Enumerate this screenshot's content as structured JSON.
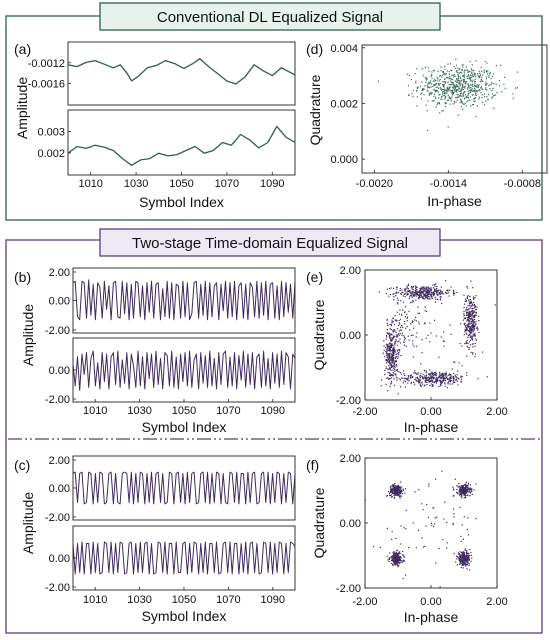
{
  "sections": [
    {
      "title": "Conventional DL Equalized Signal",
      "theme": "#2e5e4e",
      "fill": "#e6f3ec",
      "trace_color": "#2e5e4e",
      "scatter_color": "#3a6e5a"
    },
    {
      "title": "Two-stage Time-domain Equalized Signal",
      "theme": "#5a3f78",
      "fill": "#efe9f5",
      "trace_color": "#3f2a5e",
      "scatter_color": "#3f2a5e"
    }
  ],
  "chart_data": [
    {
      "panel": "(a)",
      "type": "line",
      "xlabel": "Symbol Index",
      "ylabel": "Amplitude",
      "x_range": [
        1000,
        1100
      ],
      "x_ticks": [
        "1010",
        "1030",
        "1050",
        "1070",
        "1090"
      ],
      "subplots": [
        {
          "ylim": [
            -0.0019,
            -0.00095
          ],
          "y_ticks": [
            "-0.0012",
            "-0.0016"
          ],
          "points": [
            [
              1000,
              -0.00128
            ],
            [
              1004,
              -0.00131
            ],
            [
              1008,
              -0.00124
            ],
            [
              1012,
              -0.00121
            ],
            [
              1016,
              -0.00127
            ],
            [
              1020,
              -0.00133
            ],
            [
              1023,
              -0.00128
            ],
            [
              1026,
              -0.00142
            ],
            [
              1028,
              -0.00155
            ],
            [
              1031,
              -0.00147
            ],
            [
              1035,
              -0.00133
            ],
            [
              1039,
              -0.00129
            ],
            [
              1043,
              -0.00121
            ],
            [
              1047,
              -0.00126
            ],
            [
              1051,
              -0.00134
            ],
            [
              1055,
              -0.00126
            ],
            [
              1058,
              -0.00118
            ],
            [
              1062,
              -0.00131
            ],
            [
              1066,
              -0.00143
            ],
            [
              1070,
              -0.00155
            ],
            [
              1074,
              -0.0016
            ],
            [
              1078,
              -0.00148
            ],
            [
              1082,
              -0.00128
            ],
            [
              1086,
              -0.00138
            ],
            [
              1090,
              -0.00146
            ],
            [
              1094,
              -0.00133
            ],
            [
              1098,
              -0.00141
            ],
            [
              1100,
              -0.00145
            ]
          ]
        },
        {
          "ylim": [
            0.0014,
            0.0036
          ],
          "y_ticks": [
            "0.003",
            "0.002"
          ],
          "points": [
            [
              1000,
              0.0021
            ],
            [
              1004,
              0.00235
            ],
            [
              1008,
              0.00228
            ],
            [
              1012,
              0.0024
            ],
            [
              1016,
              0.00232
            ],
            [
              1020,
              0.0022
            ],
            [
              1024,
              0.0019
            ],
            [
              1028,
              0.00165
            ],
            [
              1032,
              0.00185
            ],
            [
              1036,
              0.0019
            ],
            [
              1040,
              0.0021
            ],
            [
              1044,
              0.002
            ],
            [
              1048,
              0.00205
            ],
            [
              1052,
              0.0022
            ],
            [
              1056,
              0.00235
            ],
            [
              1060,
              0.0021
            ],
            [
              1064,
              0.0022
            ],
            [
              1068,
              0.0025
            ],
            [
              1072,
              0.0024
            ],
            [
              1076,
              0.0028
            ],
            [
              1080,
              0.0026
            ],
            [
              1084,
              0.0023
            ],
            [
              1088,
              0.0025
            ],
            [
              1092,
              0.0031
            ],
            [
              1096,
              0.0027
            ],
            [
              1100,
              0.0025
            ]
          ]
        }
      ]
    },
    {
      "panel": "(d)",
      "type": "scatter",
      "xlabel": "In-phase",
      "ylabel": "Quadrature",
      "xlim": [
        -0.0021,
        -0.0006
      ],
      "ylim": [
        -0.0005,
        0.0041
      ],
      "x_ticks": [
        {
          "v": -0.002,
          "t": "-0.0020"
        },
        {
          "v": -0.0014,
          "t": "-0.0014"
        },
        {
          "v": -0.0008,
          "t": "-0.0008"
        }
      ],
      "y_ticks": [
        {
          "v": 0.004,
          "t": "0.004"
        },
        {
          "v": 0.002,
          "t": "0.002"
        },
        {
          "v": 0.0,
          "t": "0.000"
        }
      ],
      "clusters": [
        {
          "cx": -0.00132,
          "cy": 0.00262,
          "sx": 0.00016,
          "sy": 0.00038,
          "n": 650
        }
      ]
    },
    {
      "panel": "(b)",
      "type": "line",
      "xlabel": "Symbol Index",
      "ylabel": "Amplitude",
      "x_range": [
        1000,
        1100
      ],
      "x_ticks": [
        "1010",
        "1030",
        "1050",
        "1070",
        "1090"
      ],
      "subplots": [
        {
          "ylim": [
            -2.0,
            2.0
          ],
          "y_ticks": [
            "2.00",
            "0.00",
            "-2.00"
          ],
          "tick_values": [
            2.0,
            0.0,
            -2.0
          ],
          "values": [
            1.2,
            1.3,
            -1.1,
            -1.3,
            1.3,
            1.2,
            -1.2,
            1.4,
            -1.0,
            1.1,
            -1.3,
            1.2,
            0.9,
            -1.2,
            1.3,
            -0.6,
            1.0,
            -1.3,
            1.2,
            1.3,
            -1.1,
            -1.2,
            1.3,
            -0.9,
            1.2,
            -1.3,
            1.1,
            -1.2,
            1.3,
            1.2,
            -1.1,
            1.0,
            -1.3,
            1.2,
            -0.8,
            1.3,
            -1.2,
            1.1,
            1.2,
            -1.3,
            0.8,
            -1.1,
            1.3,
            -1.2,
            1.2,
            -1.3,
            1.1,
            1.0,
            -1.2,
            1.3,
            -1.1,
            1.2,
            -1.3,
            -0.9,
            1.2,
            1.3,
            -1.2,
            1.1,
            -1.0,
            1.3,
            -1.3,
            1.2,
            -1.1,
            1.0,
            1.2,
            -1.3,
            1.1,
            -0.7,
            1.3,
            -1.2,
            1.2,
            -1.1,
            1.3,
            -1.3,
            1.0,
            1.2,
            -1.2,
            1.1,
            -1.3,
            1.2,
            0.9,
            -1.1,
            1.3,
            -1.2,
            1.2,
            -1.0,
            1.3,
            -1.3,
            1.1,
            1.2,
            -1.2,
            1.0,
            -1.3,
            1.3,
            -1.1,
            1.2,
            -0.8,
            1.1,
            -1.2,
            1.3
          ]
        },
        {
          "ylim": [
            -2.0,
            2.0
          ],
          "y_ticks": [
            "0.00",
            "-2.00"
          ],
          "tick_values": [
            0.0,
            -2.0
          ],
          "values": [
            0.4,
            -1.1,
            0.9,
            -1.4,
            1.1,
            -0.3,
            1.2,
            -1.2,
            0.8,
            1.3,
            -1.1,
            0.5,
            -1.3,
            1.2,
            -0.8,
            1.1,
            -1.3,
            0.9,
            1.2,
            -1.0,
            1.3,
            -1.2,
            0.7,
            -0.9,
            1.2,
            -1.3,
            1.1,
            0.3,
            -1.2,
            1.3,
            -1.1,
            0.9,
            -1.3,
            1.2,
            -0.6,
            1.1,
            -1.2,
            1.3,
            -1.0,
            0.8,
            -1.3,
            1.2,
            1.0,
            -1.1,
            1.3,
            -1.2,
            0.9,
            -1.3,
            1.1,
            -0.8,
            1.2,
            -1.1,
            1.3,
            -1.2,
            0.7,
            1.1,
            -1.3,
            1.2,
            -0.9,
            1.0,
            -1.2,
            1.3,
            -1.1,
            0.8,
            -1.3,
            1.2,
            -1.0,
            1.1,
            1.3,
            -1.2,
            0.9,
            -1.1,
            1.2,
            -1.3,
            1.0,
            -0.7,
            1.3,
            -1.2,
            1.1,
            -1.0,
            1.2,
            -1.3,
            0.9,
            1.1,
            -1.2,
            1.3,
            -1.1,
            0.8,
            -1.3,
            1.2,
            -0.9,
            1.1,
            -1.2,
            1.3,
            -1.0,
            1.2,
            0.9,
            -1.3,
            1.1,
            0.8
          ]
        }
      ]
    },
    {
      "panel": "(e)",
      "type": "scatter",
      "xlabel": "In-phase",
      "ylabel": "Quadrature",
      "xlim": [
        -2.0,
        2.0
      ],
      "ylim": [
        -2.0,
        2.0
      ],
      "x_ticks": [
        {
          "v": -2.0,
          "t": "-2.00"
        },
        {
          "v": 0.0,
          "t": "0.00"
        },
        {
          "v": 2.0,
          "t": "2.00"
        }
      ],
      "y_ticks": [
        {
          "v": 2.0,
          "t": "2.00"
        },
        {
          "v": 0.0,
          "t": "0.00"
        },
        {
          "v": -2.0,
          "t": "-2.00"
        }
      ],
      "clusters": [
        {
          "cx": -0.25,
          "cy": 1.3,
          "sx": 0.42,
          "sy": 0.11,
          "n": 330
        },
        {
          "cx": 0.1,
          "cy": -1.33,
          "sx": 0.5,
          "sy": 0.11,
          "n": 330
        },
        {
          "cx": -1.2,
          "cy": -0.6,
          "sx": 0.1,
          "sy": 0.42,
          "n": 300
        },
        {
          "cx": 1.2,
          "cy": 0.45,
          "sx": 0.1,
          "sy": 0.42,
          "n": 300
        },
        {
          "cx": -0.85,
          "cy": 0.2,
          "sx": 0.25,
          "sy": 0.45,
          "n": 110
        },
        {
          "cx": 0.0,
          "cy": 0.0,
          "sx": 0.8,
          "sy": 0.8,
          "n": 50
        }
      ]
    },
    {
      "panel": "(c)",
      "type": "line",
      "xlabel": "Symbol Index",
      "ylabel": "Amplitude",
      "x_range": [
        1000,
        1100
      ],
      "x_ticks": [
        "1010",
        "1030",
        "1050",
        "1070",
        "1090"
      ],
      "subplots": [
        {
          "ylim": [
            -2.0,
            2.0
          ],
          "y_ticks": [
            "2.00",
            "0.00",
            "-2.00"
          ],
          "tick_values": [
            2.0,
            0.0,
            -2.0
          ],
          "values": [
            1.0,
            1.1,
            -1.0,
            1.0,
            1.1,
            -1.1,
            -1.0,
            1.1,
            1.0,
            -1.1,
            1.0,
            -1.0,
            1.1,
            1.0,
            -1.1,
            -1.0,
            1.0,
            1.1,
            -1.1,
            1.0,
            -1.0,
            -1.1,
            1.0,
            1.1,
            1.0,
            -1.0,
            1.1,
            -1.1,
            1.0,
            -1.0,
            1.1,
            1.0,
            -1.1,
            1.0,
            -1.0,
            1.1,
            -1.1,
            1.0,
            1.1,
            -1.0,
            1.0,
            -1.1,
            -1.0,
            1.1,
            1.0,
            -1.1,
            1.0,
            1.1,
            -1.0,
            1.0,
            -1.1,
            1.1,
            -1.0,
            1.0,
            1.1,
            -1.1,
            -1.0,
            1.0,
            1.1,
            -1.0,
            1.1,
            -1.1,
            1.0,
            -1.0,
            1.1,
            1.0,
            -1.1,
            1.0,
            -1.0,
            -1.1,
            1.1,
            1.0,
            -1.0,
            1.1,
            -1.1,
            1.0,
            1.0,
            -1.1,
            1.1,
            -1.0,
            1.0,
            1.1,
            -1.1,
            -1.0,
            1.0,
            1.1,
            -1.0,
            1.1,
            -1.1,
            1.0,
            -1.0,
            1.1,
            1.0,
            -1.1,
            1.0,
            -1.0,
            1.1,
            1.0,
            -1.1,
            1.0
          ]
        },
        {
          "ylim": [
            -2.0,
            2.0
          ],
          "y_ticks": [
            "0.00",
            "-2.00"
          ],
          "tick_values": [
            0.0,
            -2.0
          ],
          "values": [
            1.0,
            -1.1,
            1.0,
            -1.0,
            1.1,
            -1.1,
            1.0,
            1.0,
            -1.1,
            1.1,
            -1.0,
            1.0,
            -1.1,
            -1.0,
            1.1,
            1.0,
            -1.0,
            1.1,
            -1.1,
            1.0,
            -1.0,
            1.1,
            1.0,
            -1.1,
            -1.0,
            1.0,
            1.1,
            -1.1,
            1.0,
            -1.0,
            1.1,
            -1.0,
            1.0,
            1.1,
            -1.1,
            1.0,
            -1.1,
            -1.0,
            1.1,
            1.0,
            -1.0,
            1.1,
            -1.1,
            1.0,
            1.0,
            -1.1,
            1.1,
            -1.0,
            -1.0,
            1.0,
            1.1,
            -1.1,
            1.0,
            -1.0,
            1.1,
            1.0,
            -1.1,
            1.0,
            -1.0,
            1.1,
            -1.1,
            1.0,
            1.0,
            -1.0,
            1.1,
            -1.1,
            -1.0,
            1.0,
            1.1,
            -1.0,
            1.1,
            -1.1,
            1.0,
            1.0,
            -1.1,
            1.0,
            -1.0,
            1.1,
            -1.1,
            1.0,
            1.1,
            -1.0,
            1.0,
            -1.1,
            -1.0,
            1.1,
            1.0,
            -1.0,
            1.1,
            -1.1,
            1.0,
            -1.0,
            1.1,
            1.0,
            -1.1,
            1.0,
            -1.0,
            1.1,
            1.0,
            0.8
          ]
        }
      ]
    },
    {
      "panel": "(f)",
      "type": "scatter",
      "xlabel": "In-phase",
      "ylabel": "Quadrature",
      "xlim": [
        -2.0,
        2.0
      ],
      "ylim": [
        -2.0,
        2.0
      ],
      "x_ticks": [
        {
          "v": -2.0,
          "t": "-2.00"
        },
        {
          "v": 0.0,
          "t": "0.00"
        },
        {
          "v": 2.0,
          "t": "2.00"
        }
      ],
      "y_ticks": [
        {
          "v": 2.0,
          "t": "2.00"
        },
        {
          "v": 0.0,
          "t": "0.00"
        },
        {
          "v": -2.0,
          "t": "-2.00"
        }
      ],
      "clusters": [
        {
          "cx": -1.05,
          "cy": 1.0,
          "sx": 0.1,
          "sy": 0.09,
          "n": 230
        },
        {
          "cx": 1.0,
          "cy": 1.0,
          "sx": 0.1,
          "sy": 0.09,
          "n": 230
        },
        {
          "cx": -1.05,
          "cy": -1.1,
          "sx": 0.1,
          "sy": 0.1,
          "n": 230
        },
        {
          "cx": 1.0,
          "cy": -1.1,
          "sx": 0.1,
          "sy": 0.1,
          "n": 230
        },
        {
          "cx": 0.0,
          "cy": 0.0,
          "sx": 0.75,
          "sy": 0.75,
          "n": 70
        }
      ]
    }
  ]
}
